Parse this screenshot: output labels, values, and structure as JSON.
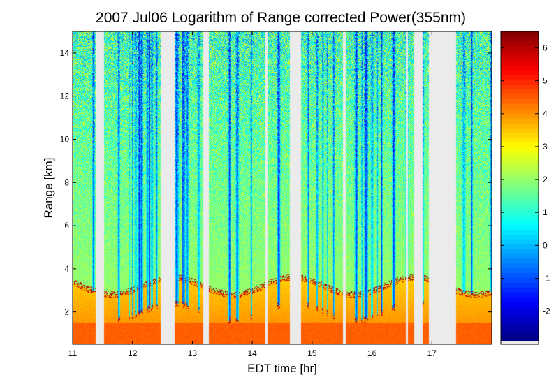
{
  "chart_data": {
    "type": "heatmap",
    "title": "2007 Jul06  Logarithm of Range corrected Power(355nm)",
    "xlabel": "EDT time [hr]",
    "ylabel": "Range [km]",
    "xlim": [
      11,
      18
    ],
    "ylim": [
      0.5,
      15
    ],
    "x_ticks": [
      "11",
      "12",
      "13",
      "14",
      "15",
      "16",
      "17"
    ],
    "y_ticks": [
      "2",
      "4",
      "6",
      "8",
      "10",
      "12",
      "14"
    ],
    "colorbar": {
      "colormap": "jet",
      "range": [
        -2.9,
        6.5
      ],
      "ticks": [
        "-2",
        "-1",
        "0",
        "1",
        "2",
        "3",
        "4",
        "5",
        "6"
      ]
    },
    "data_gaps_hr": [
      [
        11.38,
        11.52
      ],
      [
        12.47,
        12.7
      ],
      [
        13.18,
        13.27
      ],
      [
        14.22,
        14.25
      ],
      [
        14.63,
        14.81
      ],
      [
        15.52,
        15.56
      ],
      [
        16.57,
        16.6
      ],
      [
        16.71,
        16.84
      ],
      [
        16.95,
        17.41
      ]
    ],
    "description_layers": {
      "boundary_layer_top_km": 3.2,
      "boundary_layer_value": 3.8,
      "surface_value": 4.3,
      "free_troposphere_value": 1.5,
      "upper_noise_value": 1.0
    }
  }
}
